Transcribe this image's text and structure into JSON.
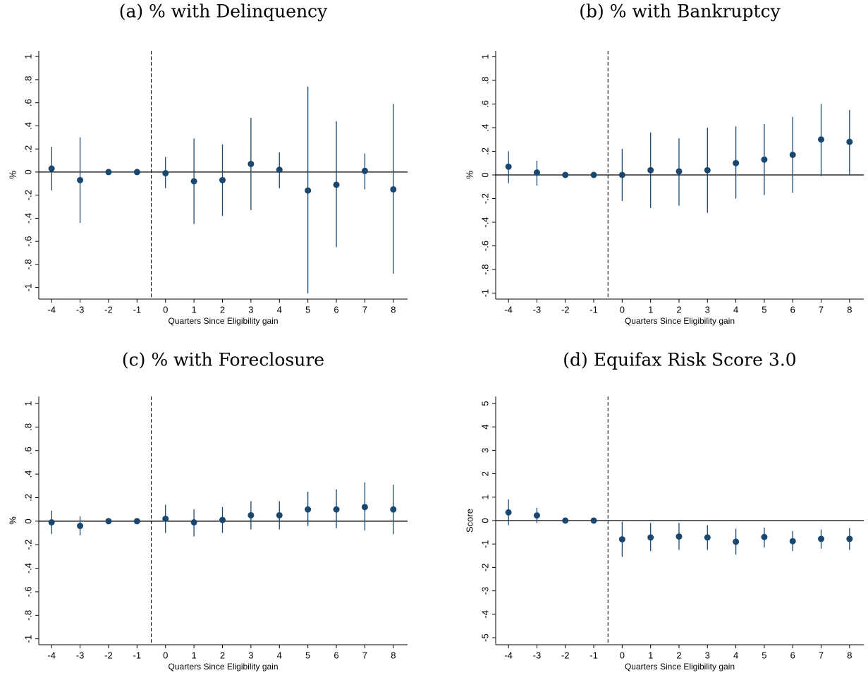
{
  "chart_data": [
    {
      "type": "errorbar",
      "title": "(a) % with Delinquency",
      "x_label": "Quarters Since Eligibility gain",
      "y_label": "%",
      "x": [
        -4,
        -3,
        -2,
        -1,
        0,
        1,
        2,
        3,
        4,
        5,
        6,
        7,
        8
      ],
      "values": [
        0.03,
        -0.07,
        0,
        0,
        -0.01,
        -0.08,
        -0.07,
        0.07,
        0.02,
        -0.16,
        -0.11,
        0.01,
        -0.15
      ],
      "ci_low": [
        -0.16,
        -0.44,
        0,
        0,
        -0.14,
        -0.45,
        -0.38,
        -0.33,
        -0.14,
        -1.05,
        -0.65,
        -0.15,
        -0.88
      ],
      "ci_high": [
        0.22,
        0.3,
        0,
        0,
        0.13,
        0.29,
        0.24,
        0.47,
        0.17,
        0.74,
        0.44,
        0.16,
        0.59
      ],
      "color": "#1a476f",
      "xlim": [
        -4.45,
        8.5
      ],
      "ylim": [
        -1.1,
        1.05
      ],
      "xticks": [
        -4,
        -3,
        -2,
        -1,
        0,
        1,
        2,
        3,
        4,
        5,
        6,
        7,
        8
      ],
      "yticks": [
        1,
        {
          "value": 0.8,
          "label": ".8"
        },
        {
          "value": 0.6,
          "label": ".6"
        },
        {
          "value": 0.4,
          "label": ".4"
        },
        {
          "value": 0.2,
          "label": ".2"
        },
        0,
        {
          "value": -0.2,
          "label": "-.2"
        },
        {
          "value": -0.4,
          "label": "-.4"
        },
        {
          "value": -0.6,
          "label": "-.6"
        },
        {
          "value": -0.8,
          "label": "-.8"
        },
        -1
      ],
      "vline": -0.5,
      "hline": 0
    },
    {
      "type": "errorbar",
      "title": "(b) % with Bankruptcy",
      "x_label": "Quarters Since Eligibility gain",
      "y_label": "%",
      "x": [
        -4,
        -3,
        -2,
        -1,
        0,
        1,
        2,
        3,
        4,
        5,
        6,
        7,
        8
      ],
      "values": [
        0.07,
        0.02,
        0,
        0,
        0,
        0.04,
        0.03,
        0.04,
        0.1,
        0.13,
        0.17,
        0.3,
        0.28
      ],
      "ci_low": [
        -0.07,
        -0.09,
        0,
        0,
        -0.22,
        -0.28,
        -0.26,
        -0.32,
        -0.2,
        -0.17,
        -0.15,
        -0.01,
        0
      ],
      "ci_high": [
        0.2,
        0.12,
        0,
        0,
        0.22,
        0.36,
        0.31,
        0.4,
        0.41,
        0.43,
        0.49,
        0.6,
        0.55
      ],
      "color": "#1a476f",
      "xlim": [
        -4.45,
        8.5
      ],
      "ylim": [
        -1.05,
        1.05
      ],
      "xticks": [
        -4,
        -3,
        -2,
        -1,
        0,
        1,
        2,
        3,
        4,
        5,
        6,
        7,
        8
      ],
      "yticks": [
        1,
        {
          "value": 0.8,
          "label": ".8"
        },
        {
          "value": 0.6,
          "label": ".6"
        },
        {
          "value": 0.4,
          "label": ".4"
        },
        {
          "value": 0.2,
          "label": ".2"
        },
        0,
        {
          "value": -0.2,
          "label": "-.2"
        },
        {
          "value": -0.4,
          "label": "-.4"
        },
        {
          "value": -0.6,
          "label": "-.6"
        },
        {
          "value": -0.8,
          "label": "-.8"
        },
        -1
      ],
      "vline": -0.5,
      "hline": 0
    },
    {
      "type": "errorbar",
      "title": "(c) % with Foreclosure",
      "x_label": "Quarters Since Eligibility gain",
      "y_label": "%",
      "x": [
        -4,
        -3,
        -2,
        -1,
        0,
        1,
        2,
        3,
        4,
        5,
        6,
        7,
        8
      ],
      "values": [
        -0.01,
        -0.04,
        0,
        0,
        0.02,
        -0.01,
        0.01,
        0.05,
        0.05,
        0.1,
        0.1,
        0.12,
        0.1
      ],
      "ci_low": [
        -0.11,
        -0.12,
        0,
        0,
        -0.1,
        -0.13,
        -0.1,
        -0.07,
        -0.07,
        -0.04,
        -0.06,
        -0.08,
        -0.11
      ],
      "ci_high": [
        0.09,
        0.04,
        0,
        0,
        0.14,
        0.1,
        0.12,
        0.17,
        0.17,
        0.25,
        0.27,
        0.33,
        0.31
      ],
      "color": "#1a476f",
      "xlim": [
        -4.45,
        8.5
      ],
      "ylim": [
        -1.05,
        1.06
      ],
      "xticks": [
        -4,
        -3,
        -2,
        -1,
        0,
        1,
        2,
        3,
        4,
        5,
        6,
        7,
        8
      ],
      "yticks": [
        1,
        {
          "value": 0.8,
          "label": ".8"
        },
        {
          "value": 0.6,
          "label": ".6"
        },
        {
          "value": 0.4,
          "label": ".4"
        },
        {
          "value": 0.2,
          "label": ".2"
        },
        0,
        {
          "value": -0.2,
          "label": "-.2"
        },
        {
          "value": -0.4,
          "label": "-.4"
        },
        {
          "value": -0.6,
          "label": "-.6"
        },
        {
          "value": -0.8,
          "label": "-.8"
        },
        -1
      ],
      "vline": -0.5,
      "hline": 0
    },
    {
      "type": "errorbar",
      "title": "(d) Equifax Risk Score 3.0",
      "x_label": "Quarters Since Eligibility gain",
      "y_label": "Score",
      "x": [
        -4,
        -3,
        -2,
        -1,
        0,
        1,
        2,
        3,
        4,
        5,
        6,
        7,
        8
      ],
      "values": [
        0.35,
        0.22,
        0,
        0,
        -0.8,
        -0.72,
        -0.68,
        -0.72,
        -0.9,
        -0.7,
        -0.88,
        -0.78,
        -0.78
      ],
      "ci_low": [
        -0.2,
        -0.1,
        0,
        0,
        -1.55,
        -1.3,
        -1.25,
        -1.25,
        -1.45,
        -1.15,
        -1.3,
        -1.2,
        -1.25
      ],
      "ci_high": [
        0.9,
        0.55,
        0,
        0,
        -0.05,
        -0.1,
        -0.1,
        -0.2,
        -0.35,
        -0.3,
        -0.45,
        -0.38,
        -0.32
      ],
      "color": "#1a476f",
      "xlim": [
        -4.45,
        8.5
      ],
      "ylim": [
        -5.3,
        5.3
      ],
      "xticks": [
        -4,
        -3,
        -2,
        -1,
        0,
        1,
        2,
        3,
        4,
        5,
        6,
        7,
        8
      ],
      "yticks": [
        5,
        4,
        3,
        2,
        1,
        0,
        -1,
        -2,
        -3,
        -4,
        -5
      ],
      "vline": -0.5,
      "hline": 0
    }
  ]
}
